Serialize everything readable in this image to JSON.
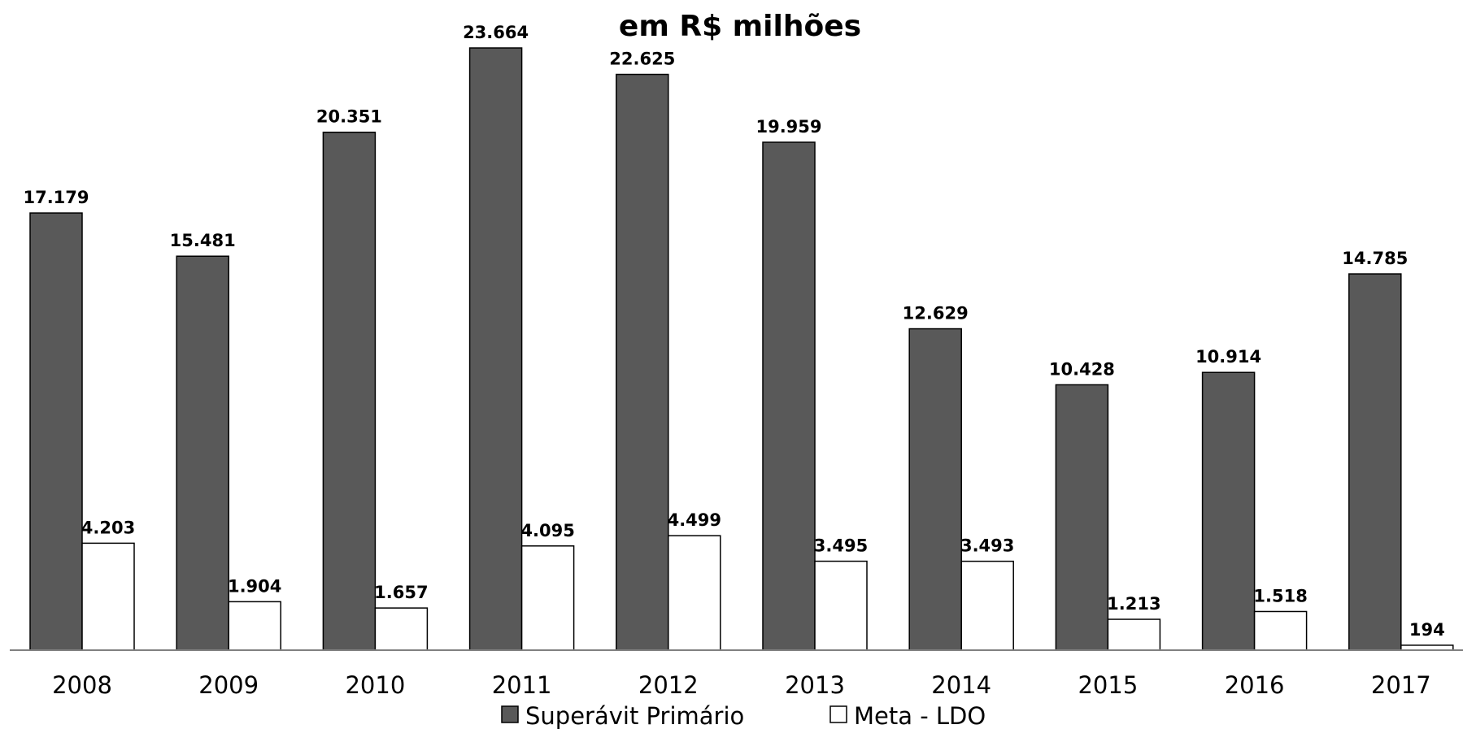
{
  "chart_data": {
    "type": "bar",
    "title": "em R$ milhões",
    "categories": [
      "2008",
      "2009",
      "2010",
      "2011",
      "2012",
      "2013",
      "2014",
      "2015",
      "2016",
      "2017"
    ],
    "series": [
      {
        "name": "Superávit Primário",
        "values": [
          17179,
          15481,
          20351,
          23664,
          22625,
          19959,
          12629,
          10428,
          10914,
          14785
        ],
        "labels": [
          "17.179",
          "15.481",
          "20.351",
          "23.664",
          "22.625",
          "19.959",
          "12.629",
          "10.428",
          "10.914",
          "14.785"
        ],
        "color": "#595959"
      },
      {
        "name": "Meta - LDO",
        "values": [
          4203,
          1904,
          1657,
          4095,
          4499,
          3495,
          3493,
          1213,
          1518,
          194
        ],
        "labels": [
          "4.203",
          "1.904",
          "1.657",
          "4.095",
          "4.499",
          "3.495",
          "3.493",
          "1.213",
          "1.518",
          "194"
        ],
        "color": "#ffffff"
      }
    ],
    "xlabel": "",
    "ylabel": "",
    "ylim": [
      0,
      23664
    ],
    "grid": false,
    "legend_position": "bottom"
  }
}
